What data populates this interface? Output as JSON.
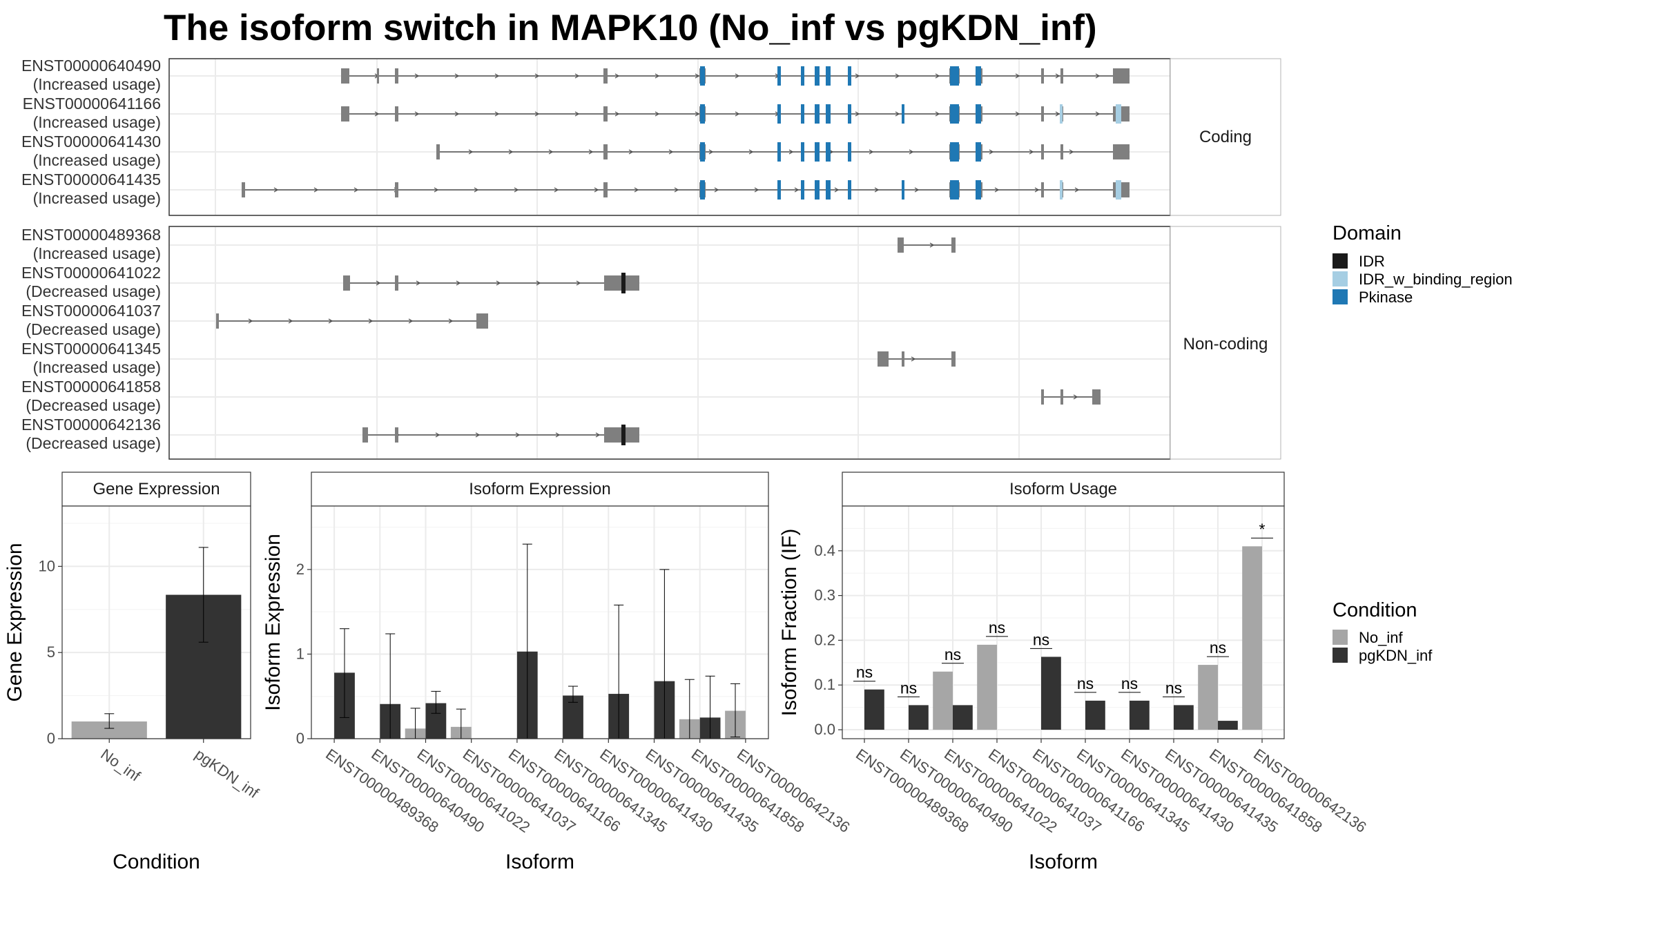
{
  "title": "The isoform switch in MAPK10 (No_inf vs pgKDN_inf)",
  "colors": {
    "no_inf": "#A6A6A6",
    "pgkdn_inf": "#333333",
    "exon": "#7F7F7F",
    "IDR": "#1A1A1A",
    "IDR_w_binding_region": "#A6CEE3",
    "Pkinase": "#1F78B4"
  },
  "legend_domain": {
    "title": "Domain",
    "items": [
      {
        "label": "IDR",
        "color": "#1A1A1A"
      },
      {
        "label": "IDR_w_binding_region",
        "color": "#A6CEE3"
      },
      {
        "label": "Pkinase",
        "color": "#1F78B4"
      }
    ]
  },
  "legend_condition": {
    "title": "Condition",
    "items": [
      {
        "label": "No_inf",
        "color": "#A6A6A6"
      },
      {
        "label": "pgKDN_inf",
        "color": "#333333"
      }
    ]
  },
  "chart_data": [
    {
      "type": "gene_structure",
      "panels": [
        {
          "strip": "Coding",
          "transcripts": [
            {
              "id": "ENST00000640490",
              "usage": "(Increased usage)"
            },
            {
              "id": "ENST00000641166",
              "usage": "(Increased usage)"
            },
            {
              "id": "ENST00000641430",
              "usage": "(Increased usage)"
            },
            {
              "id": "ENST00000641435",
              "usage": "(Increased usage)"
            }
          ]
        },
        {
          "strip": "Non-coding",
          "transcripts": [
            {
              "id": "ENST00000489368",
              "usage": "(Increased usage)"
            },
            {
              "id": "ENST00000641022",
              "usage": "(Decreased usage)"
            },
            {
              "id": "ENST00000641037",
              "usage": "(Decreased usage)"
            },
            {
              "id": "ENST00000641345",
              "usage": "(Increased usage)"
            },
            {
              "id": "ENST00000641858",
              "usage": "(Decreased usage)"
            },
            {
              "id": "ENST00000642136",
              "usage": "(Decreased usage)"
            }
          ]
        }
      ]
    },
    {
      "type": "bar",
      "strip": "Gene Expression",
      "xlabel": "Condition",
      "ylabel": "Gene Expression",
      "ylim": [
        0,
        13.5
      ],
      "yticks": [
        0,
        5,
        10
      ],
      "categories": [
        "No_inf",
        "pgKDN_inf"
      ],
      "values": [
        1.0,
        8.35
      ],
      "err_low": [
        0.6,
        5.6
      ],
      "err_high": [
        1.45,
        11.1
      ]
    },
    {
      "type": "bar",
      "strip": "Isoform Expression",
      "xlabel": "Isoform",
      "ylabel": "Isoform Expression",
      "ylim": [
        0,
        2.75
      ],
      "yticks": [
        0,
        1,
        2
      ],
      "categories": [
        "ENST00000489368",
        "ENST00000640490",
        "ENST00000641022",
        "ENST00000641037",
        "ENST00000641166",
        "ENST00000641345",
        "ENST00000641430",
        "ENST00000641435",
        "ENST00000641858",
        "ENST00000642136"
      ],
      "series": [
        {
          "name": "No_inf",
          "values": [
            0,
            0,
            0.12,
            0.14,
            0,
            0,
            0,
            0,
            0.23,
            0.33
          ],
          "err_low": [
            0,
            0,
            0,
            0,
            0,
            0,
            0,
            0,
            0,
            0.02
          ],
          "err_high": [
            0,
            0,
            0.36,
            0.35,
            0,
            0,
            0,
            0,
            0.7,
            0.65
          ]
        },
        {
          "name": "pgKDN_inf",
          "values": [
            0.78,
            0.41,
            0.42,
            0,
            1.03,
            0.51,
            0.53,
            0.68,
            0.25,
            0
          ],
          "err_low": [
            0.25,
            0,
            0.3,
            0,
            0,
            0.43,
            0,
            0,
            0,
            0
          ],
          "err_high": [
            1.3,
            1.24,
            0.56,
            0,
            2.3,
            0.62,
            1.58,
            2.0,
            0.74,
            0
          ]
        }
      ]
    },
    {
      "type": "bar",
      "strip": "Isoform Usage",
      "xlabel": "Isoform",
      "ylabel": "Isoform Fraction (IF)",
      "ylim": [
        -0.02,
        0.5
      ],
      "yticks": [
        0.0,
        0.1,
        0.2,
        0.3,
        0.4
      ],
      "ytick_labels": [
        "0.0",
        "0.1",
        "0.2",
        "0.3",
        "0.4"
      ],
      "categories": [
        "ENST00000489368",
        "ENST00000640490",
        "ENST00000641022",
        "ENST00000641037",
        "ENST00000641166",
        "ENST00000641345",
        "ENST00000641430",
        "ENST00000641435",
        "ENST00000641858",
        "ENST00000642136"
      ],
      "series": [
        {
          "name": "No_inf",
          "values": [
            0,
            0,
            0.13,
            0.19,
            0,
            0,
            0,
            0,
            0.145,
            0.41
          ]
        },
        {
          "name": "pgKDN_inf",
          "values": [
            0.09,
            0.055,
            0.055,
            0,
            0.163,
            0.065,
            0.065,
            0.055,
            0.02,
            0
          ]
        }
      ],
      "significance": [
        "ns",
        "ns",
        "ns",
        "ns",
        "ns",
        "ns",
        "ns",
        "ns",
        "ns",
        "*"
      ]
    }
  ]
}
